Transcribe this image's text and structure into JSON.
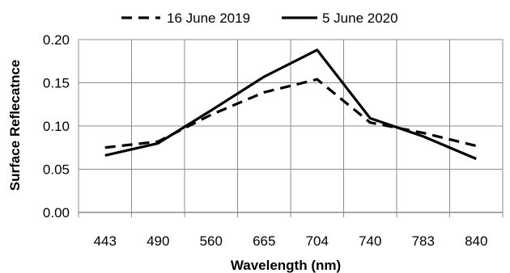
{
  "chart_data": {
    "type": "line",
    "title": "",
    "xlabel": "Wavelength (nm)",
    "ylabel": "Surface Reflecatnce",
    "categories": [
      "443",
      "490",
      "560",
      "665",
      "704",
      "740",
      "783",
      "840"
    ],
    "ylim": [
      0,
      0.2
    ],
    "yticks": [
      "0.00",
      "0.05",
      "0.10",
      "0.15",
      "0.20"
    ],
    "grid": true,
    "legend_position": "top",
    "series": [
      {
        "name": "16 June 2019",
        "style": "dashed",
        "color": "#000000",
        "values": [
          0.075,
          0.082,
          0.113,
          0.139,
          0.154,
          0.104,
          0.092,
          0.077
        ]
      },
      {
        "name": "5 June 2020",
        "style": "solid",
        "color": "#000000",
        "values": [
          0.066,
          0.08,
          0.118,
          0.157,
          0.188,
          0.109,
          0.088,
          0.062
        ]
      }
    ]
  }
}
